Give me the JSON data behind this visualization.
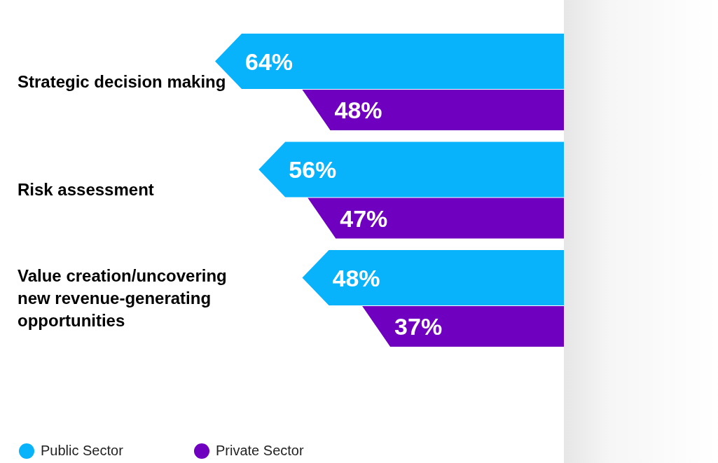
{
  "chart_data": {
    "type": "bar",
    "orientation": "horizontal",
    "legend": "bottom left",
    "categories": [
      "Strategic decision making",
      "Risk assessment",
      "Value creation/uncovering new revenue-generating opportunities"
    ],
    "series": [
      {
        "name": "Public Sector",
        "color": "#08b3fb",
        "values": [
          64,
          56,
          48
        ],
        "value_labels": [
          "64%",
          "56%",
          "48%"
        ]
      },
      {
        "name": "Private Sector",
        "color": "#7000bf",
        "values": [
          48,
          47,
          37
        ],
        "value_labels": [
          "48%",
          "47%",
          "37%"
        ]
      }
    ]
  }
}
